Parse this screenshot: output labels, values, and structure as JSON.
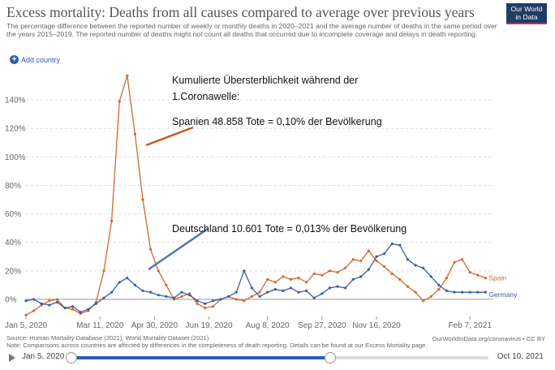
{
  "header": {
    "title": "Excess mortality: Deaths from all causes compared to average over previous years",
    "subtitle": "The percentage difference between the reported number of weekly or monthly deaths in 2020–2021 and the average number of deaths in the same period over the years 2015–2019. The reported number of deaths might not count all deaths that occurred due to incomplete coverage and delays in death reporting.",
    "logo_line1": "Our World",
    "logo_line2": "in Data",
    "add_country": "Add country"
  },
  "annotations": {
    "cumulative_line1": "Kumulierte Übersterblichkeit während der",
    "cumulative_line2": "1.Coronawelle:",
    "spain": "Spanien 48.858 Tote =  0,10% der Bevölkerung",
    "germany": "Deutschland 10.601 Tote = 0,013% der Bevölkerung"
  },
  "footer": {
    "source": "Source: Human Mortality Database (2021), World Mortality Dataset (2021)",
    "note": "Note: Comparisons across countries are affected by differences in the completeness of death reporting. Details can be found at our Excess Mortality page.",
    "url": "OurWorldInData.org/coronavirus • CC BY"
  },
  "timeline": {
    "start_label": "Jan 5, 2020",
    "end_label": "Oct 10, 2021",
    "range_start_fraction": 0.0,
    "range_end_fraction": 0.62
  },
  "chart_data": {
    "type": "line",
    "ylim": [
      -12,
      160
    ],
    "yticks": [
      0,
      20,
      40,
      60,
      80,
      100,
      120,
      140
    ],
    "ytick_labels": [
      "0%",
      "20%",
      "40%",
      "60%",
      "80%",
      "100%",
      "120%",
      "140%"
    ],
    "xlim": [
      0,
      60
    ],
    "xticks": [
      0,
      9.5,
      16.5,
      23.5,
      31,
      38,
      45,
      57
    ],
    "xtick_labels": [
      "Jan 5, 2020",
      "Mar 11, 2020",
      "Apr 30, 2020",
      "Jun 19, 2020",
      "Aug 8, 2020",
      "Sep 27, 2020",
      "Nov 16, 2020",
      "Feb 7, 2021"
    ],
    "x_unit": "weeks since Jan 5, 2020",
    "grid": true,
    "colors": {
      "Spain": "#d06a2c",
      "Germany": "#3b5da3"
    },
    "series": [
      {
        "name": "Spain",
        "x": [
          0,
          1,
          2,
          3,
          4,
          5,
          6,
          7,
          8,
          9,
          10,
          11,
          12,
          13,
          14,
          15,
          16,
          17,
          18,
          19,
          20,
          21,
          22,
          23,
          24,
          25,
          26,
          27,
          28,
          29,
          30,
          31,
          32,
          33,
          34,
          35,
          36,
          37,
          38,
          39,
          40,
          41,
          42,
          43,
          44,
          45,
          46,
          47,
          48,
          49,
          50,
          51,
          52,
          53,
          54,
          55,
          56,
          57,
          58,
          59
        ],
        "values": [
          -11,
          -8,
          -4,
          -1,
          0,
          -6,
          -7,
          -10,
          -8,
          -2,
          20,
          55,
          139,
          157,
          116,
          70,
          35,
          20,
          10,
          0,
          2,
          4,
          -3,
          -6,
          -5,
          0,
          2,
          0,
          -1,
          2,
          5,
          14,
          12,
          16,
          14,
          15,
          12,
          18,
          17,
          20,
          19,
          22,
          28,
          27,
          34,
          27,
          23,
          18,
          14,
          9,
          5,
          -1,
          2,
          7,
          15,
          26,
          28,
          19,
          17,
          15
        ]
      },
      {
        "name": "Germany",
        "x": [
          0,
          1,
          2,
          3,
          4,
          5,
          6,
          7,
          8,
          9,
          10,
          11,
          12,
          13,
          14,
          15,
          16,
          17,
          18,
          19,
          20,
          21,
          22,
          23,
          24,
          25,
          26,
          27,
          28,
          29,
          30,
          31,
          32,
          33,
          34,
          35,
          36,
          37,
          38,
          39,
          40,
          41,
          42,
          43,
          44,
          45,
          46,
          47,
          48,
          49,
          50,
          51,
          52,
          53,
          54,
          55,
          56,
          57,
          58,
          59
        ],
        "values": [
          -1,
          0,
          -3,
          -4,
          -2,
          -6,
          -5,
          -9,
          -7,
          -3,
          1,
          5,
          12,
          15,
          10,
          6,
          5,
          3,
          2,
          1,
          5,
          3,
          -1,
          -3,
          -1,
          0,
          2,
          5,
          20,
          8,
          2,
          5,
          7,
          6,
          8,
          5,
          6,
          1,
          4,
          8,
          9,
          8,
          14,
          16,
          21,
          30,
          32,
          39,
          38,
          28,
          24,
          22,
          16,
          10,
          6,
          5,
          5,
          5,
          5,
          5
        ],
        "label_visible": true
      }
    ],
    "series_labels": [
      "Spain",
      "Germany"
    ]
  }
}
